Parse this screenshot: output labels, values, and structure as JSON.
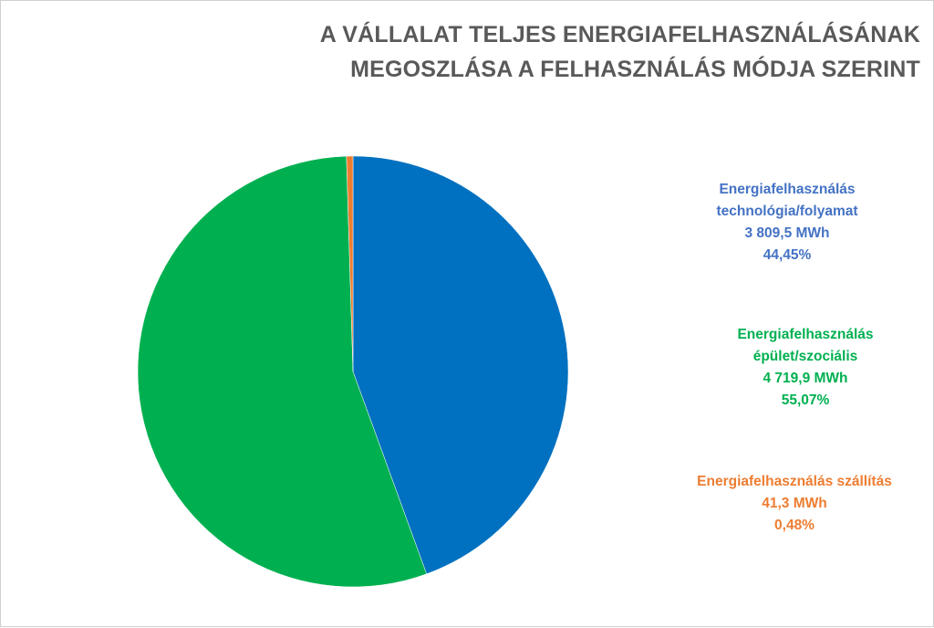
{
  "chart_data": {
    "type": "pie",
    "title_lines": [
      "A VÁLLALAT TELJES ENERGIAFELHASZNÁLÁSÁNAK",
      "MEGOSZLÁSA A FELHASZNÁLÁS MÓDJA SZERINT"
    ],
    "slices": [
      {
        "label_lines": [
          "Energiafelhasználás",
          "technológia/folyamat",
          "3 809,5 MWh",
          "44,45%"
        ],
        "value": 3809.5,
        "percent": 44.45,
        "color": "#0070c0",
        "label_color": "#4472c4"
      },
      {
        "label_lines": [
          "Energiafelhasználás",
          "épület/szociális",
          "4 719,9 MWh",
          "55,07%"
        ],
        "value": 4719.9,
        "percent": 55.07,
        "color": "#00b050",
        "label_color": "#00b050"
      },
      {
        "label_lines": [
          "Energiafelhasználás  szállítás",
          "41,3 MWh",
          "0,48%"
        ],
        "value": 41.3,
        "percent": 0.48,
        "color": "#ed7d31",
        "label_color": "#ed7d31"
      }
    ],
    "start_angle_deg": 0,
    "direction": "clockwise"
  }
}
